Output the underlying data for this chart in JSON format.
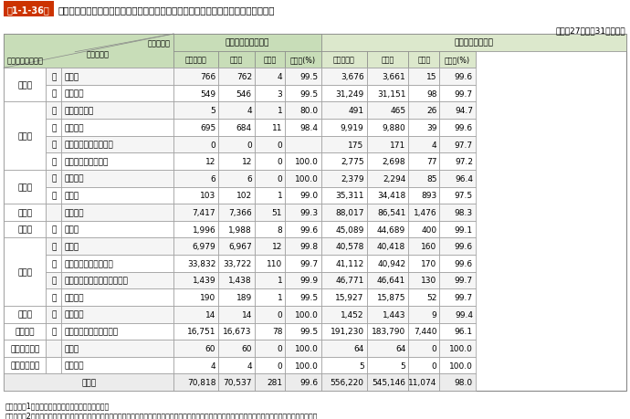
{
  "title_prefix": "第1-1-36表",
  "title_main": "全国における特定防火対象物のスプリンクラー設備及び自動火災報知設備の設置状況",
  "subtitle": "（平成27年３月31日現在）",
  "rows": [
    {
      "grp": "（一）",
      "sub": "イ",
      "name": "劇場等",
      "d": [
        766,
        762,
        4,
        "99.5",
        3676,
        3661,
        15,
        "99.6"
      ]
    },
    {
      "grp": "（一）",
      "sub": "ロ",
      "name": "公会堂等",
      "d": [
        549,
        546,
        3,
        "99.5",
        31249,
        31151,
        98,
        "99.7"
      ]
    },
    {
      "grp": "（二）",
      "sub": "イ",
      "name": "キャバレー等",
      "d": [
        5,
        4,
        1,
        "80.0",
        491,
        465,
        26,
        "94.7"
      ]
    },
    {
      "grp": "（二）",
      "sub": "ロ",
      "name": "遊技場等",
      "d": [
        695,
        684,
        11,
        "98.4",
        9919,
        9880,
        39,
        "99.6"
      ]
    },
    {
      "grp": "（二）",
      "sub": "ハ",
      "name": "性風俗特殊営業店舗等",
      "d": [
        0,
        0,
        0,
        "",
        175,
        171,
        4,
        "97.7"
      ]
    },
    {
      "grp": "（二）",
      "sub": "ニ",
      "name": "カラオケボックス等",
      "d": [
        12,
        12,
        0,
        "100.0",
        2775,
        2698,
        77,
        "97.2"
      ]
    },
    {
      "grp": "（三）",
      "sub": "イ",
      "name": "料理店等",
      "d": [
        6,
        6,
        0,
        "100.0",
        2379,
        2294,
        85,
        "96.4"
      ]
    },
    {
      "grp": "（三）",
      "sub": "ロ",
      "name": "飲食店",
      "d": [
        103,
        102,
        1,
        "99.0",
        35311,
        34418,
        893,
        "97.5"
      ]
    },
    {
      "grp": "（四）",
      "sub": "",
      "name": "百貨店等",
      "d": [
        7417,
        7366,
        51,
        "99.3",
        88017,
        86541,
        1476,
        "98.3"
      ]
    },
    {
      "grp": "（五）",
      "sub": "イ",
      "name": "旅館等",
      "d": [
        1996,
        1988,
        8,
        "99.6",
        45089,
        44689,
        400,
        "99.1"
      ]
    },
    {
      "grp": "（六）",
      "sub": "イ",
      "name": "病院等",
      "d": [
        6979,
        6967,
        12,
        "99.8",
        40578,
        40418,
        160,
        "99.6"
      ]
    },
    {
      "grp": "（六）",
      "sub": "ロ",
      "name": "特別養護老人ホーム等",
      "d": [
        33832,
        33722,
        110,
        "99.7",
        41112,
        40942,
        170,
        "99.6"
      ]
    },
    {
      "grp": "（六）",
      "sub": "ハ",
      "name": "老人デイサービスセンター等",
      "d": [
        1439,
        1438,
        1,
        "99.9",
        46771,
        46641,
        130,
        "99.7"
      ]
    },
    {
      "grp": "（六）",
      "sub": "ニ",
      "name": "幼稚園等",
      "d": [
        190,
        189,
        1,
        "99.5",
        15927,
        15875,
        52,
        "99.7"
      ]
    },
    {
      "grp": "（九）",
      "sub": "イ",
      "name": "特殊浴場",
      "d": [
        14,
        14,
        0,
        "100.0",
        1452,
        1443,
        9,
        "99.4"
      ]
    },
    {
      "grp": "（十六）",
      "sub": "イ",
      "name": "特定複合用途防火対象物",
      "d": [
        16751,
        16673,
        78,
        "99.5",
        191230,
        183790,
        7440,
        "96.1"
      ]
    },
    {
      "grp": "（十六の二）",
      "sub": "",
      "name": "地下街",
      "d": [
        60,
        60,
        0,
        "100.0",
        64,
        64,
        0,
        "100.0"
      ]
    },
    {
      "grp": "（十六の三）",
      "sub": "",
      "name": "準地下街",
      "d": [
        4,
        4,
        0,
        "100.0",
        5,
        5,
        0,
        "100.0"
      ]
    },
    {
      "grp": "合　計",
      "sub": "",
      "name": "",
      "d": [
        70818,
        70537,
        281,
        "99.6",
        556220,
        545146,
        11074,
        "98.0"
      ]
    }
  ],
  "note1": "（備考）　1　「防火対象物実態等調査」により作成",
  "note2": "　　　　　2　東日本大震災の影響により、岩手県陸前高田市消防本部及び福島県双葉地方広域市町村組合消防本部のデータは除いた数値により集計している。",
  "title_box_color": "#cc3300",
  "header_sp_color": "#c8ddb8",
  "header_af_color": "#dce8cc",
  "header_diag_color": "#c8ddb8",
  "row_alt_color": "#f5f5f5",
  "total_row_color": "#ececec"
}
